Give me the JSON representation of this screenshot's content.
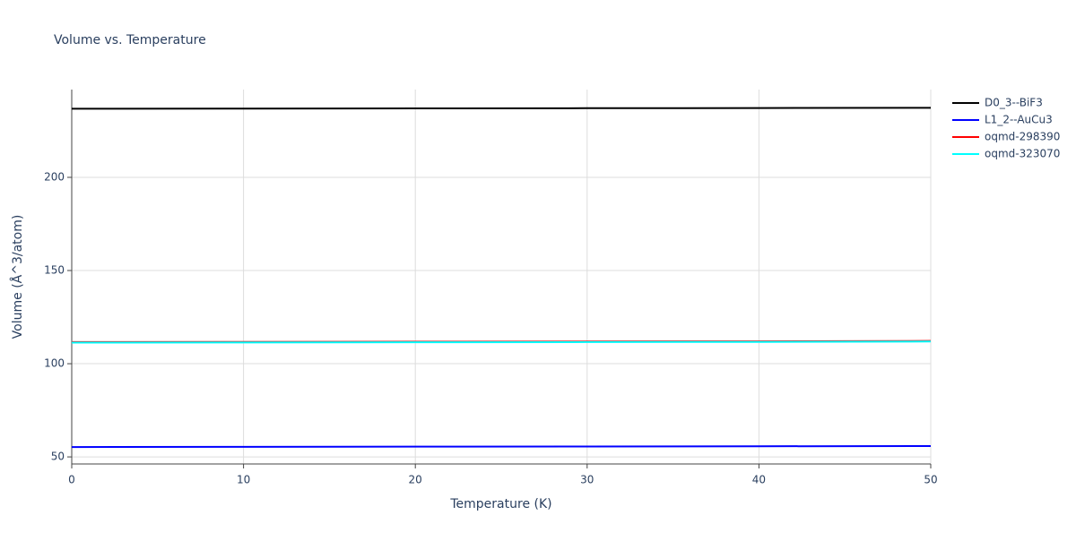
{
  "chart_data": {
    "type": "line",
    "title": "Volume vs. Temperature",
    "x_label": "Temperature (K)",
    "y_label": "Volume (Å^3/atom)",
    "x": [
      0,
      10,
      20,
      30,
      40,
      50
    ],
    "series": [
      {
        "name": "D0_3--BiF3",
        "color": "#000000",
        "values": [
          236.8,
          236.9,
          237.0,
          237.1,
          237.2,
          237.3
        ]
      },
      {
        "name": "L1_2--AuCu3",
        "color": "#0000ff",
        "values": [
          55.3,
          55.4,
          55.5,
          55.6,
          55.7,
          55.8
        ]
      },
      {
        "name": "oqmd-298390",
        "color": "#ff0000",
        "values": [
          111.6,
          111.7,
          111.8,
          111.9,
          112.0,
          112.2
        ]
      },
      {
        "name": "oqmd-323070",
        "color": "#00ffff",
        "values": [
          111.3,
          111.4,
          111.5,
          111.6,
          111.7,
          111.9
        ]
      }
    ],
    "xlim": [
      0,
      50
    ],
    "xticks": [
      0,
      10,
      20,
      30,
      40,
      50
    ],
    "ylim": [
      46.2,
      247.1
    ],
    "yticks": [
      50,
      100,
      150,
      200
    ],
    "grid": true,
    "legend": "outside-right"
  }
}
